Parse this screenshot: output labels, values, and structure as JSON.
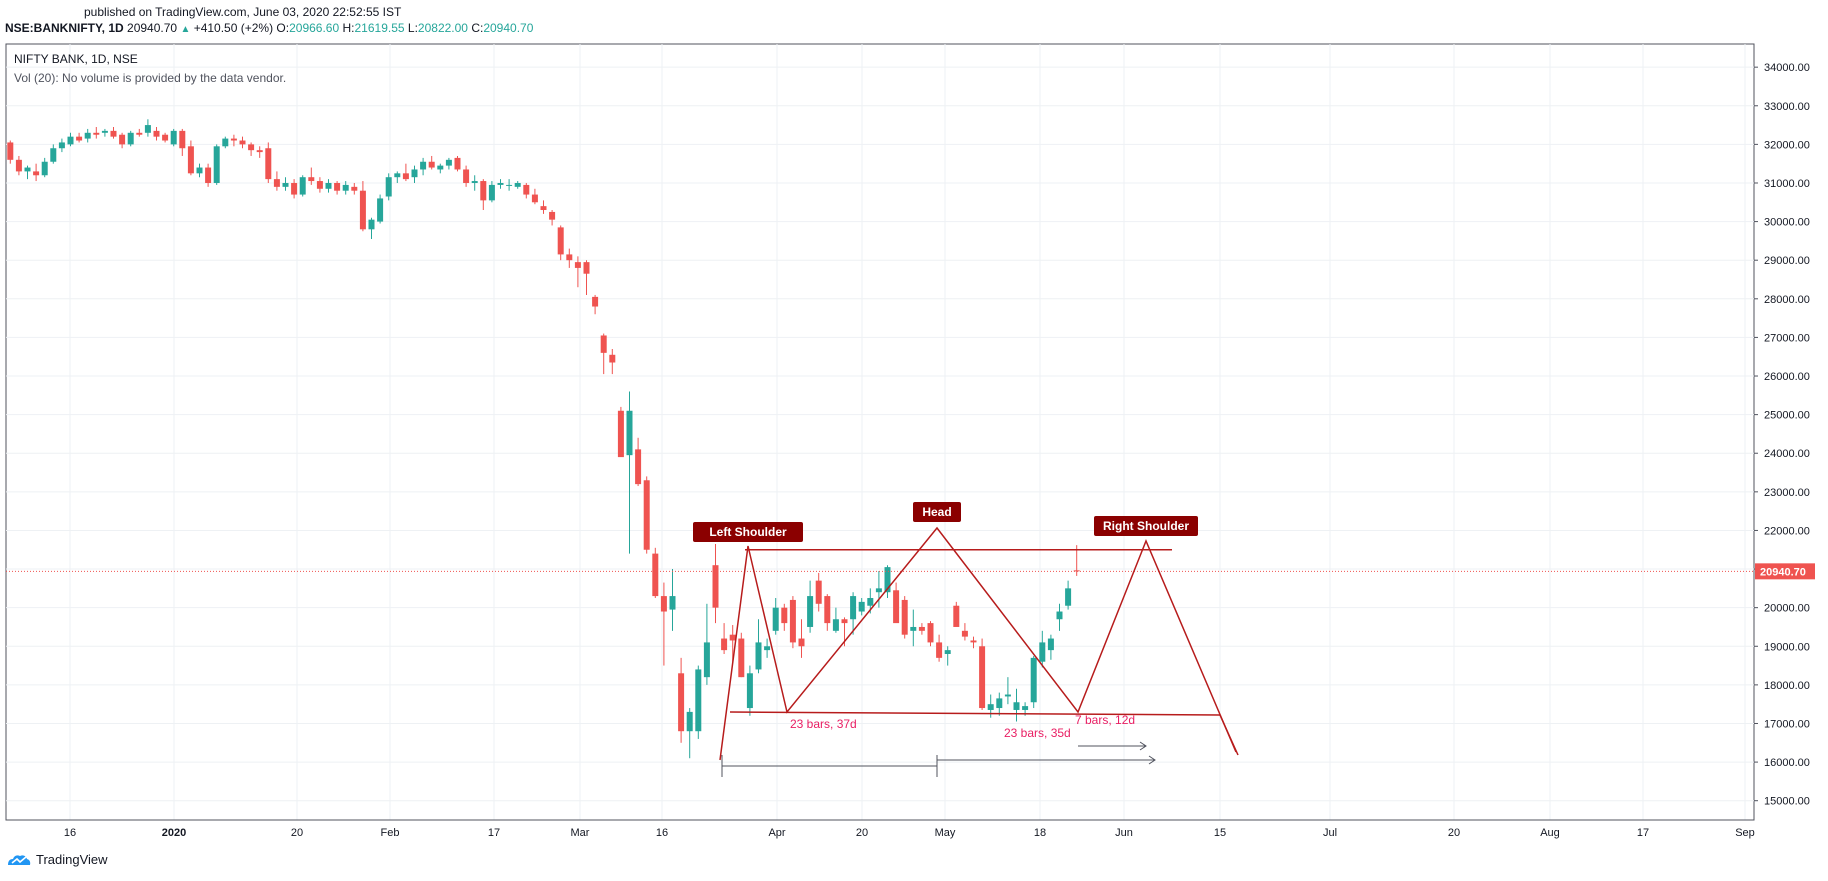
{
  "header": {
    "published": "published on TradingView.com, June 03, 2020 22:52:55 IST",
    "symbol": "NSE:BANKNIFTY, 1D",
    "last": "20940.70",
    "change": "+410.50 (+2%)",
    "o_label": "O:",
    "o": "20966.60",
    "h_label": "H:",
    "h": "21619.55",
    "l_label": "L:",
    "l": "20822.00",
    "c_label": "C:",
    "c": "20940.70"
  },
  "legend": {
    "title": "NIFTY BANK, 1D, NSE",
    "volume": "Vol (20): No volume is provided by the data vendor."
  },
  "footer": {
    "brand": "TradingView"
  },
  "colors": {
    "up": "#26a69a",
    "down": "#ef5350",
    "pattern": "#b71c1c",
    "label_bg": "#8b0000",
    "annotation": "#e91e63",
    "price_tag": "#ef5350"
  },
  "chart_data": {
    "type": "candlestick",
    "title": "NIFTY BANK, 1D, NSE",
    "ylim": [
      14500,
      34600
    ],
    "y_ticks": [
      "34000.00",
      "33000.00",
      "32000.00",
      "31000.00",
      "30000.00",
      "29000.00",
      "28000.00",
      "27000.00",
      "26000.00",
      "25000.00",
      "24000.00",
      "23000.00",
      "22000.00",
      "21000.00",
      "20000.00",
      "19000.00",
      "18000.00",
      "17000.00",
      "16000.00",
      "15000.00"
    ],
    "x_ticks": [
      "16",
      "2020",
      "20",
      "Feb",
      "17",
      "Mar",
      "16",
      "Apr",
      "20",
      "May",
      "18",
      "Jun",
      "15",
      "Jul",
      "20",
      "Aug",
      "17",
      "Sep"
    ],
    "current_price": "20940.70",
    "candles_ohlc": [
      [
        32050,
        32100,
        31500,
        31600
      ],
      [
        31600,
        31700,
        31200,
        31300
      ],
      [
        31300,
        31450,
        31100,
        31400
      ],
      [
        31300,
        31500,
        31050,
        31200
      ],
      [
        31200,
        31650,
        31150,
        31550
      ],
      [
        31550,
        32000,
        31500,
        31900
      ],
      [
        31900,
        32150,
        31800,
        32050
      ],
      [
        32000,
        32300,
        31950,
        32200
      ],
      [
        32200,
        32300,
        32050,
        32100
      ],
      [
        32150,
        32400,
        32050,
        32300
      ],
      [
        32300,
        32450,
        32150,
        32250
      ],
      [
        32300,
        32400,
        32200,
        32350
      ],
      [
        32350,
        32450,
        32150,
        32200
      ],
      [
        32250,
        32300,
        31900,
        32000
      ],
      [
        32000,
        32350,
        31950,
        32300
      ],
      [
        32300,
        32400,
        32200,
        32250
      ],
      [
        32300,
        32650,
        32200,
        32500
      ],
      [
        32350,
        32450,
        32100,
        32200
      ],
      [
        32250,
        32300,
        32050,
        32100
      ],
      [
        32000,
        32400,
        31950,
        32350
      ],
      [
        32350,
        32400,
        31700,
        31900
      ],
      [
        31950,
        32100,
        31200,
        31250
      ],
      [
        31250,
        31500,
        31150,
        31400
      ],
      [
        31400,
        31500,
        30900,
        31000
      ],
      [
        31000,
        32000,
        30950,
        31950
      ],
      [
        31950,
        32200,
        31900,
        32150
      ],
      [
        32150,
        32250,
        31950,
        32100
      ],
      [
        32100,
        32200,
        31900,
        32000
      ],
      [
        32000,
        32050,
        31700,
        31850
      ],
      [
        31850,
        31950,
        31650,
        31800
      ],
      [
        31900,
        32050,
        31000,
        31100
      ],
      [
        31100,
        31300,
        30800,
        30900
      ],
      [
        30900,
        31150,
        30800,
        31000
      ],
      [
        31000,
        31100,
        30600,
        30700
      ],
      [
        30700,
        31200,
        30650,
        31150
      ],
      [
        31150,
        31400,
        30950,
        31050
      ],
      [
        31050,
        31150,
        30750,
        30850
      ],
      [
        30850,
        31100,
        30750,
        31000
      ],
      [
        31000,
        31050,
        30700,
        30800
      ],
      [
        30800,
        31050,
        30700,
        30950
      ],
      [
        30900,
        31000,
        30700,
        30800
      ],
      [
        30800,
        31050,
        29750,
        29800
      ],
      [
        29800,
        30100,
        29550,
        30050
      ],
      [
        30000,
        30700,
        29950,
        30600
      ],
      [
        30650,
        31250,
        30550,
        31150
      ],
      [
        31150,
        31300,
        31000,
        31250
      ],
      [
        31250,
        31500,
        31050,
        31100
      ],
      [
        31150,
        31450,
        31000,
        31350
      ],
      [
        31350,
        31650,
        31200,
        31550
      ],
      [
        31550,
        31700,
        31350,
        31400
      ],
      [
        31350,
        31500,
        31250,
        31450
      ],
      [
        31450,
        31650,
        31350,
        31600
      ],
      [
        31650,
        31700,
        31300,
        31350
      ],
      [
        31350,
        31450,
        30900,
        31000
      ],
      [
        31000,
        31200,
        30800,
        31050
      ],
      [
        31050,
        31100,
        30300,
        30550
      ],
      [
        30550,
        31050,
        30500,
        30950
      ],
      [
        30950,
        31100,
        30850,
        31000
      ],
      [
        30950,
        31100,
        30800,
        30950
      ],
      [
        30900,
        31050,
        30850,
        31000
      ],
      [
        30950,
        31000,
        30600,
        30700
      ],
      [
        30700,
        30850,
        30450,
        30500
      ],
      [
        30400,
        30550,
        30200,
        30300
      ],
      [
        30250,
        30300,
        29900,
        30050
      ],
      [
        29850,
        29900,
        29000,
        29150
      ],
      [
        29150,
        29300,
        28800,
        29000
      ],
      [
        28950,
        29100,
        28300,
        28800
      ],
      [
        28950,
        29000,
        28100,
        28650
      ],
      [
        28050,
        28100,
        27600,
        27800
      ],
      [
        27050,
        27100,
        26050,
        26600
      ],
      [
        26550,
        26700,
        26050,
        26350
      ],
      [
        25100,
        25200,
        24400,
        23900
      ],
      [
        23950,
        25600,
        21400,
        25100
      ],
      [
        24100,
        24400,
        23150,
        23200
      ],
      [
        23300,
        23400,
        21400,
        21500
      ],
      [
        21400,
        21550,
        20250,
        20300
      ],
      [
        20300,
        20650,
        18500,
        19900
      ],
      [
        19950,
        21000,
        19400,
        20300
      ],
      [
        18300,
        18700,
        16500,
        16800
      ],
      [
        16800,
        17400,
        16100,
        17300
      ],
      [
        16800,
        18500,
        16600,
        18400
      ],
      [
        18200,
        20100,
        18000,
        19100
      ],
      [
        21100,
        21650,
        19600,
        20000
      ],
      [
        19200,
        19600,
        18800,
        18900
      ],
      [
        19300,
        19550,
        18600,
        19150
      ],
      [
        19200,
        19350,
        18200,
        18200
      ],
      [
        17400,
        18500,
        17200,
        18300
      ],
      [
        18400,
        19700,
        18300,
        19100
      ],
      [
        18900,
        19200,
        18700,
        19000
      ],
      [
        19400,
        20250,
        19300,
        20000
      ],
      [
        20000,
        20100,
        19400,
        19600
      ],
      [
        20200,
        20300,
        18950,
        19100
      ],
      [
        19200,
        19700,
        18700,
        19000
      ],
      [
        19500,
        20700,
        19350,
        20300
      ],
      [
        20700,
        20900,
        19900,
        20100
      ],
      [
        20300,
        20350,
        19400,
        19600
      ],
      [
        19400,
        20000,
        19350,
        19700
      ],
      [
        19700,
        19750,
        19000,
        19600
      ],
      [
        19700,
        20400,
        19300,
        20300
      ],
      [
        19900,
        20250,
        19800,
        20150
      ],
      [
        20050,
        20500,
        19850,
        20250
      ],
      [
        20400,
        20950,
        20000,
        20500
      ],
      [
        20400,
        21100,
        20250,
        21050
      ],
      [
        20450,
        20650,
        19650,
        19600
      ],
      [
        20200,
        20300,
        19200,
        19300
      ],
      [
        19400,
        19950,
        19000,
        19500
      ],
      [
        19500,
        19600,
        19300,
        19400
      ],
      [
        19600,
        19650,
        19000,
        19100
      ],
      [
        19100,
        19300,
        18600,
        18700
      ],
      [
        18800,
        19000,
        18500,
        18900
      ],
      [
        20050,
        20150,
        19550,
        19500
      ],
      [
        19400,
        19600,
        19150,
        19250
      ],
      [
        19150,
        19250,
        18950,
        19100
      ],
      [
        19000,
        19200,
        17350,
        17400
      ],
      [
        17350,
        17750,
        17150,
        17500
      ],
      [
        17400,
        17800,
        17200,
        17650
      ],
      [
        17700,
        18200,
        17500,
        17750
      ],
      [
        17350,
        17900,
        17050,
        17550
      ],
      [
        17350,
        17550,
        17200,
        17450
      ],
      [
        17550,
        18750,
        17400,
        18700
      ],
      [
        18600,
        19400,
        18450,
        19100
      ],
      [
        18900,
        19300,
        18650,
        19200
      ],
      [
        19700,
        20100,
        19400,
        19900
      ],
      [
        20050,
        20700,
        19950,
        20500
      ],
      [
        20966.6,
        21619.55,
        20822,
        20940.7
      ]
    ],
    "pattern": {
      "name": "Head and Shoulders",
      "labels": [
        "Left Shoulder",
        "Head",
        "Right Shoulder"
      ],
      "neckline_top": 21500,
      "neckline_bottom": 17100,
      "annotations": [
        "23 bars, 37d",
        "23 bars, 35d",
        "7 bars, 12d"
      ]
    }
  }
}
